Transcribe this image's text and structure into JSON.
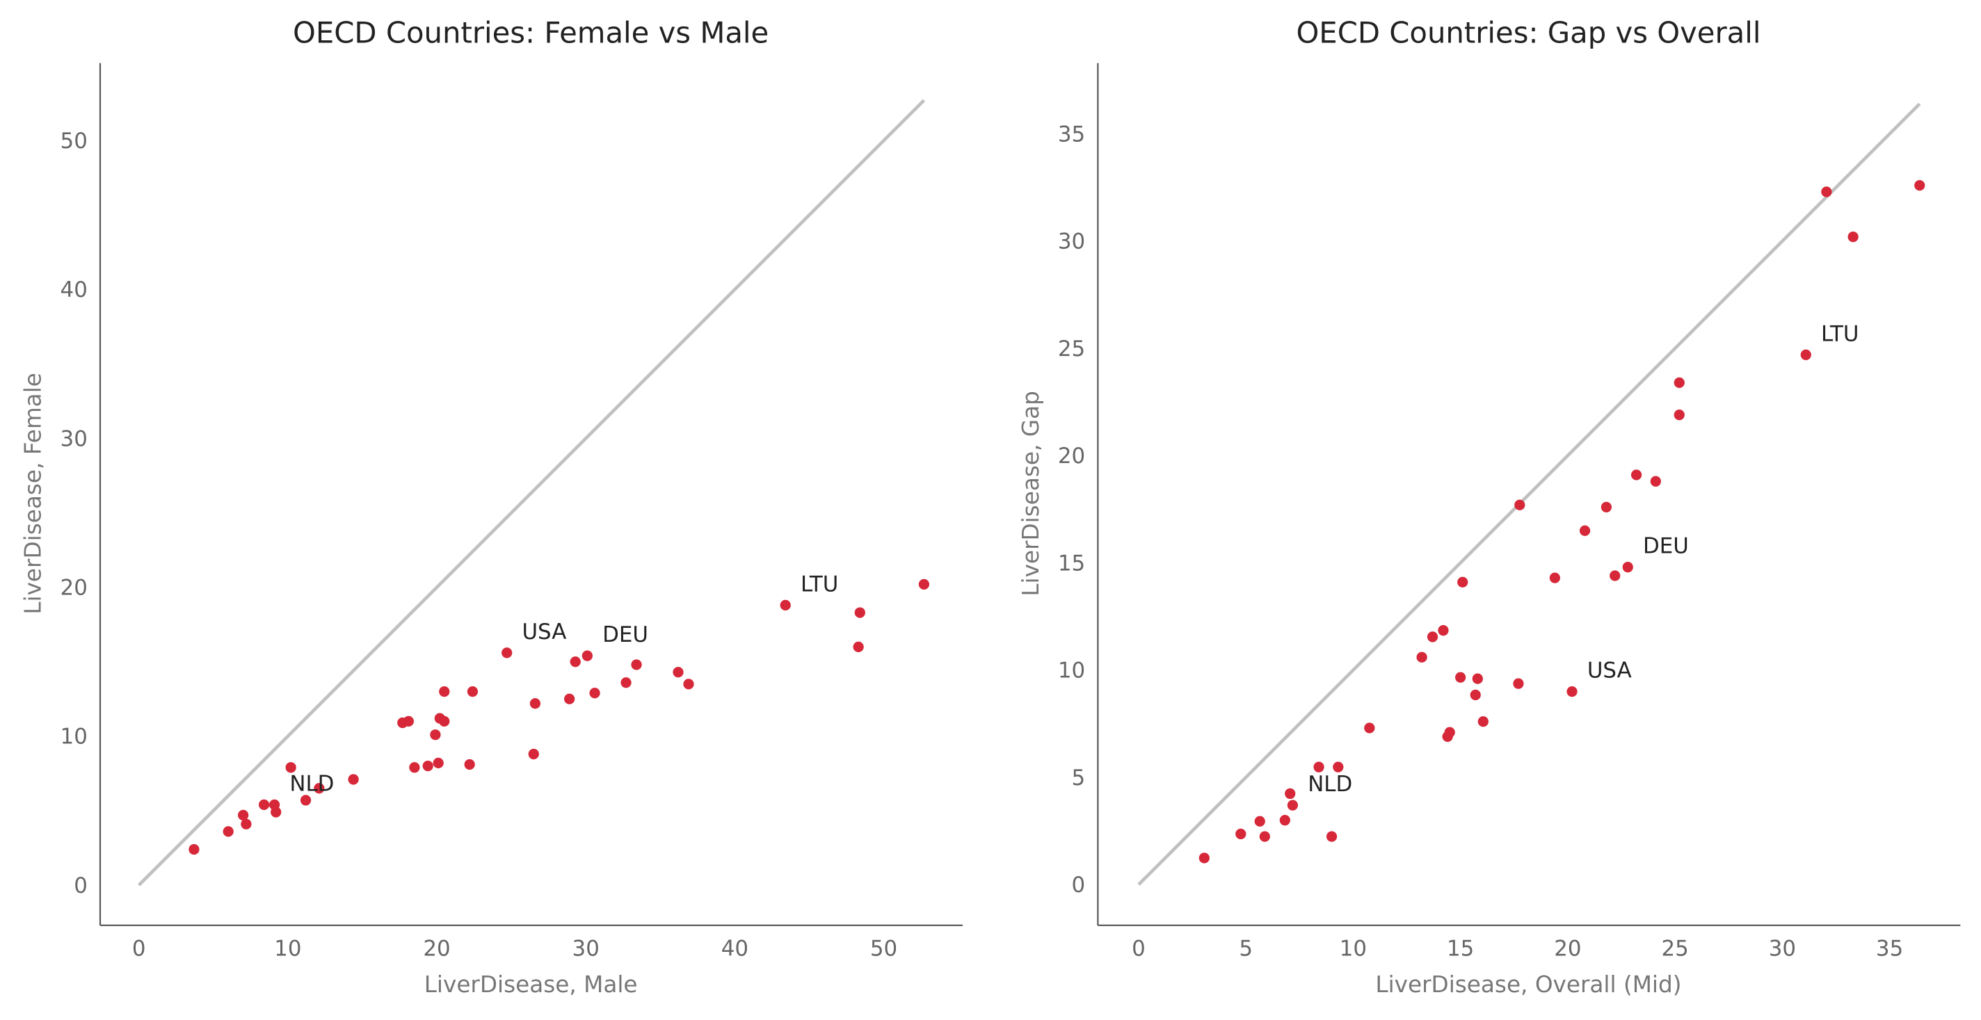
{
  "chart_data": [
    {
      "type": "scatter",
      "title": "OECD Countries: Female vs Male",
      "xlabel": "LiverDisease, Male",
      "ylabel": "LiverDisease, Female",
      "xlim": [
        -2.6,
        55.3
      ],
      "ylim": [
        -2.7,
        55.2
      ],
      "xticks": [
        0,
        10,
        20,
        30,
        40,
        50
      ],
      "yticks": [
        0,
        10,
        20,
        30,
        40,
        50
      ],
      "grid": false,
      "point_color": "#d62839",
      "reference_line": {
        "type": "y=x",
        "color": "#c0c0c0",
        "from": 0,
        "to": 52.7
      },
      "x": [
        3.7,
        6.0,
        7.0,
        7.2,
        8.4,
        9.1,
        9.2,
        10.2,
        11.2,
        12.1,
        14.4,
        17.7,
        18.1,
        18.5,
        19.4,
        19.9,
        20.1,
        20.2,
        20.5,
        20.5,
        22.2,
        22.4,
        24.7,
        26.5,
        26.6,
        28.9,
        29.3,
        30.1,
        30.6,
        32.7,
        33.4,
        36.2,
        36.9,
        43.4,
        48.3,
        48.4,
        52.7
      ],
      "y": [
        2.4,
        3.6,
        4.7,
        4.1,
        5.4,
        5.4,
        4.9,
        7.9,
        5.7,
        6.5,
        7.1,
        10.9,
        11.0,
        7.9,
        8.0,
        10.1,
        8.2,
        11.2,
        11.0,
        13.0,
        8.1,
        13.0,
        15.6,
        8.8,
        12.2,
        12.5,
        15.0,
        15.4,
        12.9,
        13.6,
        14.8,
        14.3,
        13.5,
        18.8,
        16.0,
        18.3,
        20.2
      ],
      "annotations": [
        {
          "text": "NLD",
          "x": 9.1,
          "y": 5.4
        },
        {
          "text": "USA",
          "x": 24.7,
          "y": 15.6
        },
        {
          "text": "DEU",
          "x": 30.1,
          "y": 15.4
        },
        {
          "text": "LTU",
          "x": 43.4,
          "y": 18.8
        }
      ]
    },
    {
      "type": "scatter",
      "title": "OECD Countries: Gap vs Overall",
      "xlabel": "LiverDisease, Overall (Mid)",
      "ylabel": "LiverDisease, Gap",
      "xlim": [
        -1.9,
        38.3
      ],
      "ylim": [
        -1.9,
        38.3
      ],
      "xticks": [
        0,
        5,
        10,
        15,
        20,
        25,
        30,
        35
      ],
      "yticks": [
        0,
        5,
        10,
        15,
        20,
        25,
        30,
        35
      ],
      "grid": false,
      "point_color": "#d62839",
      "reference_line": {
        "type": "y=x",
        "color": "#c0c0c0",
        "from": 0,
        "to": 36.4
      },
      "x": [
        3.06,
        4.76,
        5.65,
        5.88,
        6.82,
        7.18,
        7.06,
        8.4,
        9.3,
        9.0,
        10.76,
        13.2,
        13.7,
        14.2,
        15.1,
        15.0,
        15.8,
        15.7,
        14.4,
        14.5,
        16.06,
        17.7,
        17.76,
        19.4,
        20.2,
        20.8,
        21.8,
        22.2,
        22.8,
        23.2,
        24.1,
        25.2,
        25.2,
        31.1,
        32.06,
        33.3,
        36.4
      ],
      "y": [
        1.24,
        2.36,
        2.95,
        2.24,
        3.0,
        3.7,
        4.24,
        5.48,
        5.48,
        2.24,
        7.3,
        10.6,
        11.55,
        11.85,
        14.1,
        9.66,
        9.6,
        8.84,
        6.9,
        7.1,
        7.6,
        9.37,
        17.7,
        14.3,
        9.0,
        16.5,
        17.6,
        14.4,
        14.8,
        19.1,
        18.8,
        21.9,
        23.4,
        24.7,
        32.3,
        30.2,
        32.6
      ],
      "annotations": [
        {
          "text": "NLD",
          "x": 7.18,
          "y": 3.7
        },
        {
          "text": "USA",
          "x": 20.2,
          "y": 9.0
        },
        {
          "text": "DEU",
          "x": 22.8,
          "y": 14.8
        },
        {
          "text": "LTU",
          "x": 31.1,
          "y": 24.7
        }
      ]
    }
  ]
}
